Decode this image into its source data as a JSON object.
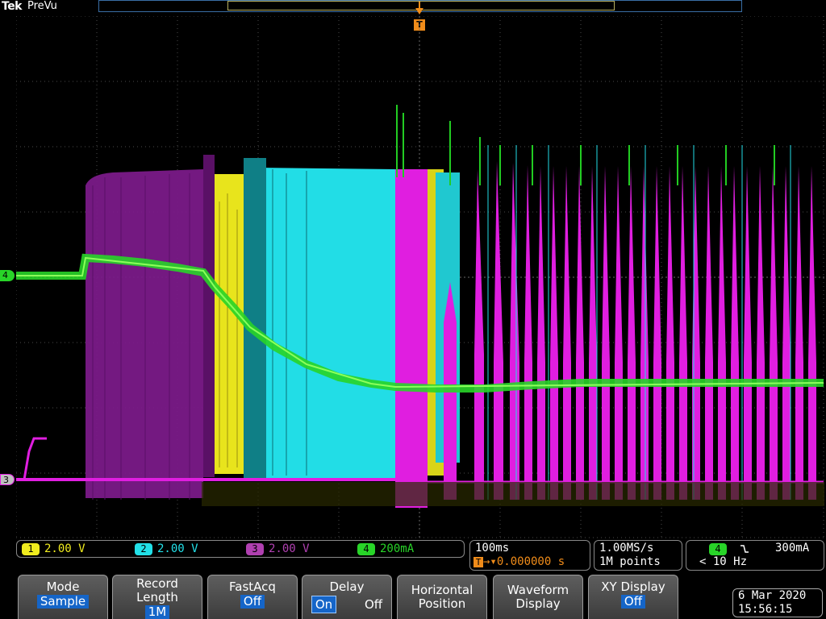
{
  "header": {
    "brand": "Tek",
    "mode": "PreVu"
  },
  "trigger_marker": "T",
  "channel_markers": {
    "ch4": "4",
    "ch3": "3"
  },
  "channels": [
    {
      "num": "1",
      "scale": "2.00 V",
      "color": "#f0ec1e"
    },
    {
      "num": "2",
      "scale": "2.00 V",
      "color": "#22e0e8"
    },
    {
      "num": "3",
      "scale": "2.00 V",
      "color": "#b040b0"
    },
    {
      "num": "4",
      "scale": "200mA",
      "color": "#28d428"
    }
  ],
  "timebase": {
    "scale": "100ms",
    "delay": "0.000000 s"
  },
  "acquisition": {
    "rate": "1.00MS/s",
    "points": "1M points"
  },
  "trigger": {
    "source": "4",
    "slope_icon": "falling-edge",
    "level": "300mA",
    "freq": "< 10 Hz"
  },
  "menu": {
    "mode": {
      "label": "Mode",
      "value": "Sample"
    },
    "record": {
      "label1": "Record",
      "label2": "Length",
      "value": "1M"
    },
    "fastacq": {
      "label": "FastAcq",
      "value": "Off"
    },
    "delay": {
      "label": "Delay",
      "on": "On",
      "off": "Off"
    },
    "horizontal": {
      "label1": "Horizontal",
      "label2": "Position"
    },
    "waveform": {
      "label1": "Waveform",
      "label2": "Display"
    },
    "xy": {
      "label": "XY Display",
      "value": "Off"
    }
  },
  "datetime": {
    "date": "6 Mar 2020",
    "time": "15:56:15"
  }
}
